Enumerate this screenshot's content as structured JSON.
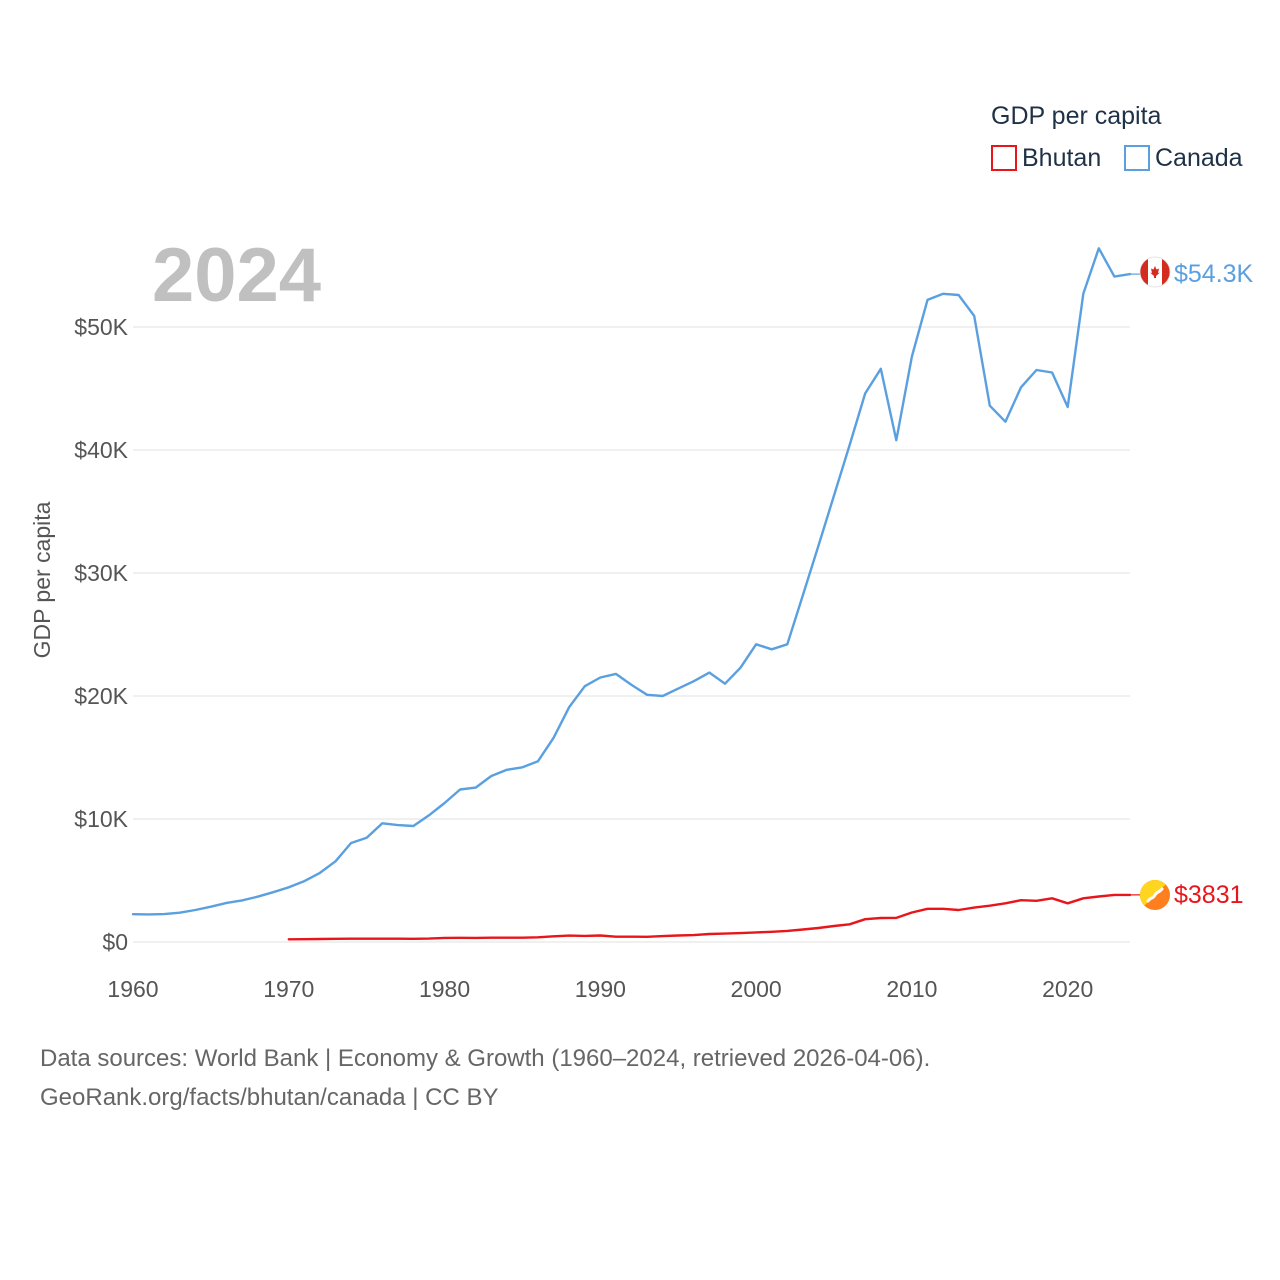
{
  "chart_data": {
    "type": "line",
    "year_label": "2024",
    "ylabel": "GDP per capita",
    "xlabel": "",
    "xlim": [
      1960,
      2024
    ],
    "ylim": [
      0,
      57000
    ],
    "x_ticks": [
      1960,
      1970,
      1980,
      1990,
      2000,
      2010,
      2020
    ],
    "x_tick_labels": [
      "1960",
      "1970",
      "1980",
      "1990",
      "2000",
      "2010",
      "2020"
    ],
    "y_ticks": [
      0,
      10000,
      20000,
      30000,
      40000,
      50000
    ],
    "y_tick_labels": [
      "$0",
      "$10K",
      "$20K",
      "$30K",
      "$40K",
      "$50K"
    ],
    "grid": true,
    "legend": {
      "title": "GDP per capita",
      "position": "top-right",
      "entries": [
        "Bhutan",
        "Canada"
      ]
    },
    "series": [
      {
        "name": "Bhutan",
        "color": "#e8161b",
        "end_label": "$3831",
        "flag_icon": "bhutan-flag-icon",
        "x": [
          1970,
          1971,
          1972,
          1973,
          1974,
          1975,
          1976,
          1977,
          1978,
          1979,
          1980,
          1981,
          1982,
          1983,
          1984,
          1985,
          1986,
          1987,
          1988,
          1989,
          1990,
          1991,
          1992,
          1993,
          1994,
          1995,
          1996,
          1997,
          1998,
          1999,
          2000,
          2001,
          2002,
          2003,
          2004,
          2005,
          2006,
          2007,
          2008,
          2009,
          2010,
          2011,
          2012,
          2013,
          2014,
          2015,
          2016,
          2017,
          2018,
          2019,
          2020,
          2021,
          2022,
          2023,
          2024
        ],
        "values": [
          220,
          230,
          240,
          260,
          270,
          270,
          270,
          270,
          260,
          280,
          330,
          340,
          330,
          350,
          350,
          350,
          380,
          460,
          520,
          500,
          530,
          430,
          430,
          420,
          480,
          530,
          560,
          650,
          680,
          720,
          780,
          830,
          900,
          1020,
          1140,
          1300,
          1440,
          1850,
          1950,
          1960,
          2400,
          2700,
          2700,
          2600,
          2800,
          2950,
          3150,
          3400,
          3350,
          3550,
          3150,
          3550,
          3700,
          3831,
          3831
        ]
      },
      {
        "name": "Canada",
        "color": "#5aa0e0",
        "end_label": "$54.3K",
        "flag_icon": "canada-flag-icon",
        "x": [
          1960,
          1961,
          1962,
          1963,
          1964,
          1965,
          1966,
          1967,
          1968,
          1969,
          1970,
          1971,
          1972,
          1973,
          1974,
          1975,
          1976,
          1977,
          1978,
          1979,
          1980,
          1981,
          1982,
          1983,
          1984,
          1985,
          1986,
          1987,
          1988,
          1989,
          1990,
          1991,
          1992,
          1993,
          1994,
          1995,
          1996,
          1997,
          1998,
          1999,
          2000,
          2001,
          2002,
          2003,
          2004,
          2005,
          2006,
          2007,
          2008,
          2009,
          2010,
          2011,
          2012,
          2013,
          2014,
          2015,
          2016,
          2017,
          2018,
          2019,
          2020,
          2021,
          2022,
          2023,
          2024
        ],
        "values": [
          2260,
          2240,
          2270,
          2380,
          2600,
          2870,
          3180,
          3380,
          3680,
          4050,
          4450,
          4950,
          5620,
          6560,
          8050,
          8480,
          9650,
          9500,
          9430,
          10300,
          11300,
          12400,
          12550,
          13500,
          14000,
          14200,
          14700,
          16600,
          19100,
          20800,
          21500,
          21800,
          20900,
          20100,
          20000,
          20600,
          21200,
          21900,
          21000,
          22300,
          24200,
          23800,
          24200,
          28200,
          32200,
          36300,
          40400,
          44600,
          46600,
          40800,
          47600,
          52200,
          52700,
          52600,
          50900,
          43600,
          42300,
          45100,
          46500,
          46300,
          43500,
          52700,
          56400,
          54100,
          54300
        ]
      }
    ]
  },
  "footer": {
    "sources": "Data sources: World Bank | Economy & Growth (1960–2024, retrieved 2026-04-06).",
    "credit": "GeoRank.org/facts/bhutan/canada | CC BY"
  }
}
